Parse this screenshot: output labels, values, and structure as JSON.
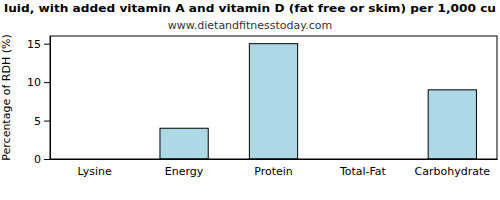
{
  "chart_data": {
    "type": "bar",
    "title": "luid, with added vitamin A and vitamin D (fat free or skim) per 1,000 cu",
    "subtitle": "www.dietandfitnesstoday.com",
    "y_label": "Percentage of RDH (%)",
    "categories": [
      "Lysine",
      "Energy",
      "Protein",
      "Total-Fat",
      "Carbohydrate"
    ],
    "values": [
      0,
      4,
      15,
      0,
      9
    ],
    "color": "#add8e6",
    "ylim": [
      0,
      16
    ],
    "yticks": [
      0,
      5,
      10,
      15
    ],
    "grid": false
  }
}
